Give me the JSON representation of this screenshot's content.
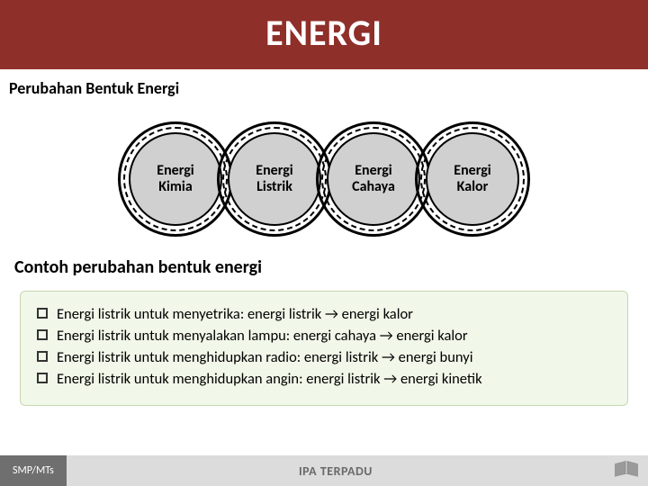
{
  "title": "ENERGI",
  "title_bg": "#8f2f2a",
  "title_color": "#ffffff",
  "title_fontsize": 40,
  "subtitle": "Perubahan Bentuk Energi",
  "subtitle_fontsize": 18,
  "circles": {
    "fill": "#d0d0d0",
    "outline": "#000000",
    "diameter_outer": 128,
    "items": [
      {
        "label": "Energi\nKimia"
      },
      {
        "label": "Energi\nListrik"
      },
      {
        "label": "Energi\nCahaya"
      },
      {
        "label": "Energi\nKalor"
      }
    ]
  },
  "section_label": "Contoh perubahan bentuk energi",
  "section_fontsize": 20,
  "bullets_box": {
    "bg": "#f1f7e9",
    "border": "#c8d8b0",
    "items": [
      "Energi listrik untuk menyetrika: energi listrik → energi kalor",
      "Energi listrik untuk menyalakan lampu: energi cahaya → energi kalor",
      "Energi listrik untuk menghidupkan radio: energi listrik → energi bunyi",
      "Energi listrik untuk menghidupkan angin: energi listrik → energi kinetik"
    ]
  },
  "footer": {
    "left": "SMP/MTs",
    "center": "IPA TERPADU",
    "bg": "#dcdcdc",
    "left_bg": "#6f6f6f"
  }
}
